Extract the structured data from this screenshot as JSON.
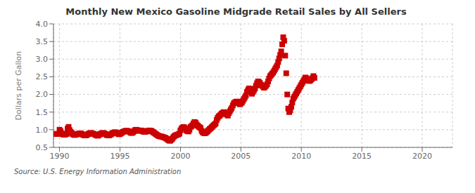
{
  "chart_data": {
    "type": "scatter",
    "title": "Monthly New Mexico Gasoline Midgrade Retail Sales by All Sellers",
    "ylabel": "Dollars per Gallon",
    "annotations": [
      "Source: U.S. Energy Information Administration"
    ],
    "color": "#cc0000",
    "marker": "square",
    "grid": true,
    "xlim": [
      1989.5,
      2022.5
    ],
    "xticks": [
      1990,
      1995,
      2000,
      2005,
      2010,
      2015,
      2020
    ],
    "ylim": [
      0.5,
      4.0
    ],
    "yticks": [
      0.5,
      {
        "value": 1.0,
        "label": "1.0"
      },
      1.5,
      {
        "value": 2.0,
        "label": "2.0"
      },
      2.5,
      {
        "value": 3.0,
        "label": "3.0"
      },
      3.5,
      {
        "value": 4.0,
        "label": "4.0"
      }
    ],
    "x": [
      1989.583,
      1989.667,
      1989.75,
      1989.833,
      1989.917,
      1990.0,
      1990.083,
      1990.167,
      1990.25,
      1990.333,
      1990.417,
      1990.5,
      1990.583,
      1990.667,
      1990.75,
      1990.833,
      1990.917,
      1991.0,
      1991.083,
      1991.167,
      1991.25,
      1991.333,
      1991.417,
      1991.5,
      1991.583,
      1991.667,
      1991.75,
      1991.833,
      1991.917,
      1992.0,
      1992.083,
      1992.167,
      1992.25,
      1992.333,
      1992.417,
      1992.5,
      1992.583,
      1992.667,
      1992.75,
      1992.833,
      1992.917,
      1993.0,
      1993.083,
      1993.167,
      1993.25,
      1993.333,
      1993.417,
      1993.5,
      1993.583,
      1993.667,
      1993.75,
      1993.833,
      1993.917,
      1994.0,
      1994.083,
      1994.167,
      1994.25,
      1994.333,
      1994.417,
      1994.5,
      1994.583,
      1994.667,
      1994.75,
      1994.833,
      1994.917,
      1995.0,
      1995.083,
      1995.167,
      1995.25,
      1995.333,
      1995.417,
      1995.5,
      1995.583,
      1995.667,
      1995.75,
      1995.833,
      1995.917,
      1996.0,
      1996.083,
      1996.167,
      1996.25,
      1996.333,
      1996.417,
      1996.5,
      1996.583,
      1996.667,
      1996.75,
      1996.833,
      1996.917,
      1997.0,
      1997.083,
      1997.167,
      1997.25,
      1997.333,
      1997.417,
      1997.5,
      1997.583,
      1997.667,
      1997.75,
      1997.833,
      1997.917,
      1998.0,
      1998.083,
      1998.167,
      1998.25,
      1998.333,
      1998.417,
      1998.5,
      1998.583,
      1998.667,
      1998.75,
      1998.833,
      1998.917,
      1999.0,
      1999.083,
      1999.167,
      1999.25,
      1999.333,
      1999.417,
      1999.5,
      1999.583,
      1999.667,
      1999.75,
      1999.833,
      1999.917,
      2000.0,
      2000.083,
      2000.167,
      2000.25,
      2000.333,
      2000.417,
      2000.5,
      2000.583,
      2000.667,
      2000.75,
      2000.833,
      2000.917,
      2001.0,
      2001.083,
      2001.167,
      2001.25,
      2001.333,
      2001.417,
      2001.5,
      2001.583,
      2001.667,
      2001.75,
      2001.833,
      2001.917,
      2002.0,
      2002.083,
      2002.167,
      2002.25,
      2002.333,
      2002.417,
      2002.5,
      2002.583,
      2002.667,
      2002.75,
      2002.833,
      2002.917,
      2003.0,
      2003.083,
      2003.167,
      2003.25,
      2003.333,
      2003.417,
      2003.5,
      2003.583,
      2003.667,
      2003.75,
      2003.833,
      2003.917,
      2004.0,
      2004.083,
      2004.167,
      2004.25,
      2004.333,
      2004.417,
      2004.5,
      2004.583,
      2004.667,
      2004.75,
      2004.833,
      2004.917,
      2005.0,
      2005.083,
      2005.167,
      2005.25,
      2005.333,
      2005.417,
      2005.5,
      2005.583,
      2005.667,
      2005.75,
      2005.833,
      2005.917,
      2006.0,
      2006.083,
      2006.167,
      2006.25,
      2006.333,
      2006.417,
      2006.5,
      2006.583,
      2006.667,
      2006.75,
      2006.833,
      2006.917,
      2007.0,
      2007.083,
      2007.167,
      2007.25,
      2007.333,
      2007.417,
      2007.5,
      2007.583,
      2007.667,
      2007.75,
      2007.833,
      2007.917,
      2008.0,
      2008.083,
      2008.167,
      2008.25,
      2008.333,
      2008.417,
      2008.5,
      2008.583,
      2008.667,
      2008.75,
      2008.833,
      2008.917,
      2009.0,
      2009.083,
      2009.167,
      2009.25,
      2009.333,
      2009.417,
      2009.5,
      2009.583,
      2009.667,
      2009.75,
      2009.833,
      2009.917,
      2010.0,
      2010.083,
      2010.167,
      2010.25,
      2010.333,
      2010.417,
      2010.5,
      2010.583,
      2010.667,
      2010.75,
      2010.833,
      2010.917,
      2011.0,
      2011.083
    ],
    "values": [
      0.88,
      0.88,
      0.88,
      0.88,
      0.88,
      1.0,
      0.96,
      0.9,
      0.88,
      0.86,
      0.86,
      0.87,
      0.88,
      1.03,
      1.08,
      0.99,
      0.94,
      0.91,
      0.88,
      0.86,
      0.85,
      0.86,
      0.87,
      0.88,
      0.89,
      0.89,
      0.9,
      0.88,
      0.86,
      0.85,
      0.84,
      0.84,
      0.85,
      0.87,
      0.89,
      0.9,
      0.91,
      0.9,
      0.89,
      0.88,
      0.87,
      0.85,
      0.84,
      0.83,
      0.85,
      0.87,
      0.89,
      0.9,
      0.91,
      0.9,
      0.89,
      0.87,
      0.85,
      0.84,
      0.84,
      0.85,
      0.87,
      0.89,
      0.91,
      0.92,
      0.93,
      0.92,
      0.91,
      0.89,
      0.87,
      0.88,
      0.9,
      0.92,
      0.94,
      0.95,
      0.96,
      0.97,
      0.97,
      0.96,
      0.95,
      0.93,
      0.91,
      0.91,
      0.93,
      0.96,
      0.99,
      1.0,
      0.99,
      0.98,
      0.97,
      0.97,
      0.98,
      0.97,
      0.95,
      0.94,
      0.94,
      0.95,
      0.96,
      0.97,
      0.98,
      0.97,
      0.97,
      0.95,
      0.93,
      0.91,
      0.89,
      0.87,
      0.85,
      0.83,
      0.82,
      0.81,
      0.81,
      0.8,
      0.79,
      0.78,
      0.77,
      0.75,
      0.73,
      0.71,
      0.69,
      0.69,
      0.72,
      0.75,
      0.79,
      0.82,
      0.84,
      0.85,
      0.86,
      0.87,
      0.89,
      0.98,
      1.03,
      1.06,
      1.08,
      1.06,
      1.03,
      0.98,
      0.96,
      0.95,
      1.0,
      1.08,
      1.1,
      1.13,
      1.18,
      1.22,
      1.2,
      1.15,
      1.12,
      1.09,
      1.07,
      1.05,
      0.97,
      0.93,
      0.91,
      0.9,
      0.91,
      0.93,
      0.96,
      0.99,
      1.02,
      1.04,
      1.07,
      1.1,
      1.13,
      1.15,
      1.18,
      1.28,
      1.34,
      1.38,
      1.4,
      1.43,
      1.46,
      1.48,
      1.5,
      1.48,
      1.46,
      1.43,
      1.4,
      1.47,
      1.52,
      1.57,
      1.62,
      1.69,
      1.75,
      1.77,
      1.79,
      1.8,
      1.79,
      1.75,
      1.72,
      1.75,
      1.77,
      1.82,
      1.87,
      1.92,
      1.97,
      2.07,
      2.12,
      2.17,
      2.15,
      2.07,
      2.02,
      2.07,
      2.12,
      2.17,
      2.25,
      2.32,
      2.37,
      2.35,
      2.32,
      2.27,
      2.25,
      2.22,
      2.19,
      2.22,
      2.25,
      2.29,
      2.37,
      2.45,
      2.52,
      2.55,
      2.59,
      2.62,
      2.67,
      2.72,
      2.77,
      2.82,
      2.92,
      3.02,
      3.12,
      3.22,
      3.42,
      3.62,
      3.52,
      3.1,
      2.6,
      2.0,
      1.6,
      1.5,
      1.55,
      1.65,
      1.77,
      1.88,
      1.93,
      1.98,
      2.03,
      2.08,
      2.13,
      2.18,
      2.23,
      2.28,
      2.33,
      2.38,
      2.43,
      2.48,
      2.46,
      2.43,
      2.4,
      2.38,
      2.4,
      2.43,
      2.46,
      2.52,
      2.47
    ]
  }
}
